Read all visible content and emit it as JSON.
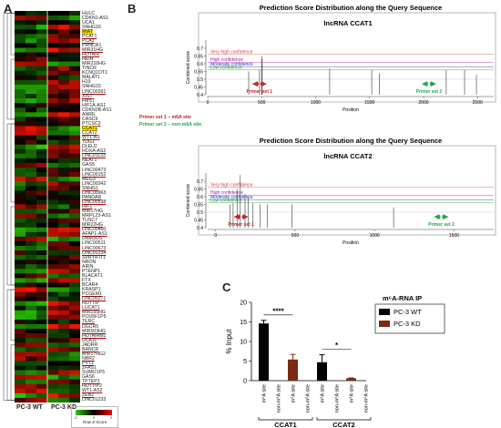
{
  "panels": {
    "a": "A",
    "b": "B",
    "c": "C"
  },
  "heatmap": {
    "genes": [
      "HULC",
      "CDKN1-AS1",
      "UCA1",
      "SNHG16",
      "MIAT",
      "PCAT1",
      "PCA3",
      "PRNCR1",
      "MIR31HG",
      "HOTAIR",
      "HEIH",
      "MIR210HG",
      "TINCR",
      "KCNQ1OT1",
      "MALAT1",
      "H19",
      "SNHG15",
      "LINC00261",
      "XIST",
      "FMST",
      "HIF1A-AS1",
      "CDKN2B-AS1",
      "ANRIL",
      "CASC9",
      "PTCSC3",
      "CCAT1",
      "CCAT2",
      "WT1-AS",
      "TUG1",
      "DLEU2",
      "HOXA-AS2",
      "LINC01133",
      "NEAT1",
      "GAS5",
      "LINC00473",
      "LINC00152",
      "MEG3",
      "LINC00342",
      "SNHG1",
      "LINC00963",
      "PANDAR",
      "LINC00538",
      "HIF1",
      "MIR17HG",
      "MRPL23-AS1",
      "TUSC7",
      "MIR22HG",
      "LINC00460",
      "AFAP1-AS1",
      "DNM3OS",
      "LINC00511",
      "LINC00673",
      "LINC01234",
      "SPRY4-IT1",
      "NRON",
      "AIRN",
      "PTENP1",
      "BLACAT1",
      "FTX",
      "BCAR4",
      "KRASP1",
      "PCGEM1",
      "LINC00271",
      "HOTTIP",
      "LUCAT1",
      "MIR155HG",
      "POU5F1P5",
      "TERC",
      "DGCR5",
      "MIR503HG",
      "HOTAIRM1",
      "UCA1L",
      "JADRR",
      "BANCR",
      "MIR17HG2",
      "NBR2",
      "PVT1",
      "ZFAS1",
      "SUMO1P3",
      "GAS6",
      "TPTEP1",
      "HOTTIP2",
      "WT1-AS2",
      "ZEB2",
      "LINC01233"
    ],
    "highlights_yellow": [
      4,
      25
    ],
    "red_underlined": [
      5,
      6,
      8,
      9,
      17,
      18,
      24,
      26,
      27,
      30,
      31,
      35,
      38,
      40,
      41,
      42,
      46,
      48,
      51,
      52,
      61,
      62,
      64,
      67,
      69,
      70,
      73,
      75,
      76,
      80,
      82,
      83
    ],
    "xlabels": [
      "PC-3 WT",
      "PC-3 KD"
    ],
    "colorscale_label": "Row Z-Score",
    "scale_ticks": [
      "-2",
      "0",
      "2"
    ],
    "colors": {
      "low": "#38c800",
      "mid": "#000000",
      "high": "#ff0000"
    }
  },
  "plot1": {
    "title": "Prediction Score Distribution along the Query Sequence",
    "subtitle": "lncRNA CCAT1",
    "ylabel": "Combined score",
    "xlabel": "Position",
    "xlim": [
      0,
      2650
    ],
    "xticks": [
      0,
      500,
      1000,
      1500,
      2000,
      2500
    ],
    "ylim": [
      0.4,
      0.8
    ],
    "yticks": [
      0.4,
      0.45,
      0.5,
      0.55,
      0.6,
      0.65,
      0.7
    ],
    "thresholds": [
      {
        "label": "Very high confidence",
        "value": 0.66,
        "color": "#e23b3b"
      },
      {
        "label": "High confidence",
        "value": 0.61,
        "color": "#a020a0"
      },
      {
        "label": "Moderate confidence",
        "value": 0.58,
        "color": "#2a2acc"
      },
      {
        "label": "Low confidence",
        "value": 0.56,
        "color": "#22a022"
      }
    ],
    "peaks": [
      [
        380,
        0.55
      ],
      [
        480,
        0.56
      ],
      [
        500,
        0.65
      ],
      [
        505,
        0.63
      ],
      [
        1130,
        0.57
      ],
      [
        1520,
        0.56
      ],
      [
        1590,
        0.54
      ],
      [
        2210,
        0.56
      ],
      [
        2380,
        0.56
      ],
      [
        2490,
        0.53
      ]
    ],
    "primers": [
      {
        "label": "Primer set 1",
        "position": 480,
        "color": "#c0262c"
      },
      {
        "label": "Primer set 2",
        "position": 2050,
        "color": "#22a84a"
      }
    ],
    "legend": [
      {
        "text": "Primer set 1 – m6A site",
        "color": "#c0262c"
      },
      {
        "text": "Primer set 2 – non-m6A site",
        "color": "#22a84a"
      }
    ]
  },
  "plot2": {
    "title": "Prediction Score Distribution along the Query Sequence",
    "subtitle": "lncRNA CCAT2",
    "ylabel": "Combined score",
    "xlabel": "Position",
    "xlim": [
      -50,
      1750
    ],
    "xticks": [
      0,
      500,
      1000,
      1500
    ],
    "ylim": [
      0.4,
      0.8
    ],
    "yticks": [
      0.4,
      0.45,
      0.5,
      0.55,
      0.6,
      0.65,
      0.7
    ],
    "thresholds": [
      {
        "label": "Very high confidence",
        "value": 0.66,
        "color": "#e23b3b"
      },
      {
        "label": "High confidence",
        "value": 0.61,
        "color": "#a020a0"
      },
      {
        "label": "Moderate confidence",
        "value": 0.58,
        "color": "#2a2acc"
      },
      {
        "label": "Low confidence",
        "value": 0.56,
        "color": "#22a022"
      }
    ],
    "peaks": [
      [
        90,
        0.55
      ],
      [
        110,
        0.56
      ],
      [
        135,
        0.65
      ],
      [
        155,
        0.74
      ],
      [
        185,
        0.62
      ],
      [
        205,
        0.6
      ],
      [
        235,
        0.56
      ],
      [
        280,
        0.55
      ],
      [
        325,
        0.55
      ],
      [
        480,
        0.55
      ],
      [
        1120,
        0.53
      ]
    ],
    "primers": [
      {
        "label": "Primer set 1",
        "position": 160,
        "color": "#c0262c"
      },
      {
        "label": "Primer set 2",
        "position": 1420,
        "color": "#22a84a"
      }
    ]
  },
  "chart_data": {
    "type": "bar",
    "ylabel": "% Input",
    "ylim": [
      0,
      20
    ],
    "yticks": [
      0,
      5,
      10,
      15,
      20
    ],
    "legend_title": "m6A-RNA IP",
    "series": [
      {
        "name": "PC-3 WT",
        "color": "#000000"
      },
      {
        "name": "PC-3 KD",
        "color": "#7a2a10"
      }
    ],
    "bars": [
      {
        "category": "m6A site",
        "group": "CCAT1",
        "series": "PC-3 WT",
        "value": 14.6,
        "error": 0.8
      },
      {
        "category": "non-m6A site",
        "group": "CCAT1",
        "series": "PC-3 WT",
        "value": 0.0,
        "error": 0
      },
      {
        "category": "m6A site",
        "group": "CCAT1",
        "series": "PC-3 KD",
        "value": 5.4,
        "error": 1.3
      },
      {
        "category": "non-m6A site",
        "group": "CCAT1",
        "series": "PC-3 KD",
        "value": 0.0,
        "error": 0
      },
      {
        "category": "m6A site",
        "group": "CCAT2",
        "series": "PC-3 WT",
        "value": 4.7,
        "error": 1.9
      },
      {
        "category": "non-m6A site",
        "group": "CCAT2",
        "series": "PC-3 WT",
        "value": 0.0,
        "error": 0
      },
      {
        "category": "m6A site",
        "group": "CCAT2",
        "series": "PC-3 KD",
        "value": 0.6,
        "error": 0.1
      },
      {
        "category": "non-m6A site",
        "group": "CCAT2",
        "series": "PC-3 KD",
        "value": 0.0,
        "error": 0
      }
    ],
    "significance": [
      {
        "label": "****",
        "from": 0,
        "to": 2
      },
      {
        "label": "*",
        "from": 4,
        "to": 6
      }
    ],
    "groups": [
      "CCAT1",
      "CCAT2"
    ]
  }
}
